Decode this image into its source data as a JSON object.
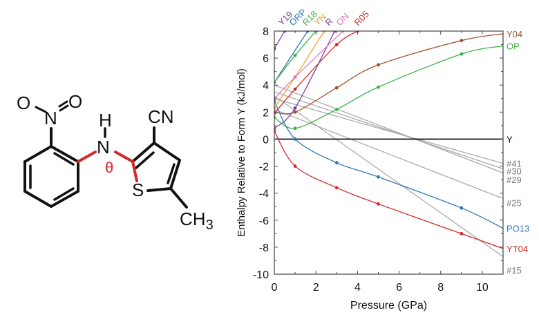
{
  "molecule": {
    "atoms": {
      "o_left": "O",
      "o_right": "O",
      "n_nitro": "N",
      "n_amine": "N",
      "h_amine": "H",
      "theta": "θ",
      "s": "S",
      "cn": "CN",
      "ch3_c": "CH",
      "ch3_sub": "3"
    },
    "highlight_color": "#d62728"
  },
  "chart_data": {
    "type": "line",
    "title": "",
    "xlabel": "Pressure (GPa)",
    "ylabel": "Enthalpy Relative to Form Y (kJ/mol)",
    "xlim": [
      0,
      11
    ],
    "ylim": [
      -10,
      8
    ],
    "x_ticks": [
      "0",
      "2",
      "4",
      "6",
      "8",
      "10"
    ],
    "y_ticks": [
      "8",
      "6",
      "4",
      "2",
      "0",
      "-2",
      "-4",
      "-6",
      "-8",
      "-10"
    ],
    "grid": false,
    "series": [
      {
        "name": "Y",
        "color": "#000000",
        "x": [
          0,
          11
        ],
        "values": [
          0,
          0
        ]
      },
      {
        "name": "Y04",
        "color": "#a0522d",
        "x": [
          0,
          1,
          3,
          5,
          9,
          11
        ],
        "values": [
          2.0,
          2.0,
          3.8,
          5.5,
          7.3,
          7.8
        ]
      },
      {
        "name": "OP",
        "color": "#3cb043",
        "x": [
          0,
          1,
          3,
          5,
          9,
          11
        ],
        "values": [
          1.6,
          0.8,
          2.2,
          3.85,
          6.3,
          6.9
        ]
      },
      {
        "name": "PO13",
        "color": "#2e75b6",
        "x": [
          0,
          1,
          3,
          5,
          9,
          11
        ],
        "values": [
          2.8,
          0.0,
          -1.75,
          -2.8,
          -5.1,
          -6.6
        ]
      },
      {
        "name": "YT04",
        "color": "#d62728",
        "x": [
          0,
          1,
          3,
          5,
          9,
          11
        ],
        "values": [
          0.6,
          -2.0,
          -3.6,
          -4.8,
          -7.0,
          -8.1
        ]
      },
      {
        "name": "Y19",
        "color": "#7b3f9e",
        "x": [
          0,
          0.5
        ],
        "values": [
          6.7,
          8.0
        ]
      },
      {
        "name": "ORP",
        "color": "#2e75b6",
        "x": [
          0,
          1.6
        ],
        "values": [
          4.2,
          8.0
        ]
      },
      {
        "name": "R18",
        "color": "#3cb043",
        "x": [
          0,
          1,
          2.0
        ],
        "values": [
          4.2,
          6.2,
          8.0
        ]
      },
      {
        "name": "YN",
        "color": "#f0a030",
        "x": [
          0,
          1,
          2.4
        ],
        "values": [
          2.3,
          4.6,
          8.0
        ]
      },
      {
        "name": "R",
        "color": "#7b3f9e",
        "x": [
          0,
          1,
          2.9
        ],
        "values": [
          0.8,
          2.3,
          8.0
        ]
      },
      {
        "name": "ON",
        "color": "#e377c2",
        "x": [
          0,
          1,
          3.3
        ],
        "values": [
          3.0,
          4.6,
          8.0
        ]
      },
      {
        "name": "R05",
        "color": "#d62728",
        "x": [
          0,
          1,
          3,
          4.0
        ],
        "values": [
          1.9,
          3.7,
          7.0,
          8.0
        ]
      },
      {
        "name": "#41",
        "color": "#aaaaaa",
        "x": [
          0,
          11
        ],
        "values": [
          3.0,
          -1.8
        ]
      },
      {
        "name": "#30",
        "color": "#aaaaaa",
        "x": [
          0,
          11
        ],
        "values": [
          3.5,
          -2.2
        ]
      },
      {
        "name": "#29",
        "color": "#aaaaaa",
        "x": [
          0,
          11
        ],
        "values": [
          4.0,
          -2.5
        ]
      },
      {
        "name": "#25",
        "color": "#aaaaaa",
        "x": [
          0,
          11
        ],
        "values": [
          2.2,
          -4.4
        ]
      },
      {
        "name": "#15",
        "color": "#aaaaaa",
        "x": [
          0,
          11
        ],
        "values": [
          3.2,
          -8.7
        ]
      }
    ],
    "right_labels": [
      {
        "text": "Y04",
        "color": "#a0522d",
        "y": 7.8
      },
      {
        "text": "OP",
        "color": "#3cb043",
        "y": 6.9
      },
      {
        "text": "Y",
        "color": "#000000",
        "y": 0
      },
      {
        "text": "#41",
        "color": "#777777",
        "y": -1.8
      },
      {
        "text": "#30",
        "color": "#777777",
        "y": -2.35
      },
      {
        "text": "#29",
        "color": "#777777",
        "y": -3.0
      },
      {
        "text": "#25",
        "color": "#777777",
        "y": -4.7
      },
      {
        "text": "PO13",
        "color": "#2e75b6",
        "y": -6.6
      },
      {
        "text": "YT04",
        "color": "#d62728",
        "y": -8.1
      },
      {
        "text": "#15",
        "color": "#777777",
        "y": -9.7
      }
    ],
    "top_labels": [
      {
        "text": "Y19",
        "color": "#7b3f9e"
      },
      {
        "text": "ORP",
        "color": "#2e75b6"
      },
      {
        "text": "R18",
        "color": "#3cb043"
      },
      {
        "text": "YN",
        "color": "#f0a030"
      },
      {
        "text": "R",
        "color": "#7b3f9e"
      },
      {
        "text": "ON",
        "color": "#e377c2"
      },
      {
        "text": "R05",
        "color": "#d62728"
      }
    ]
  }
}
